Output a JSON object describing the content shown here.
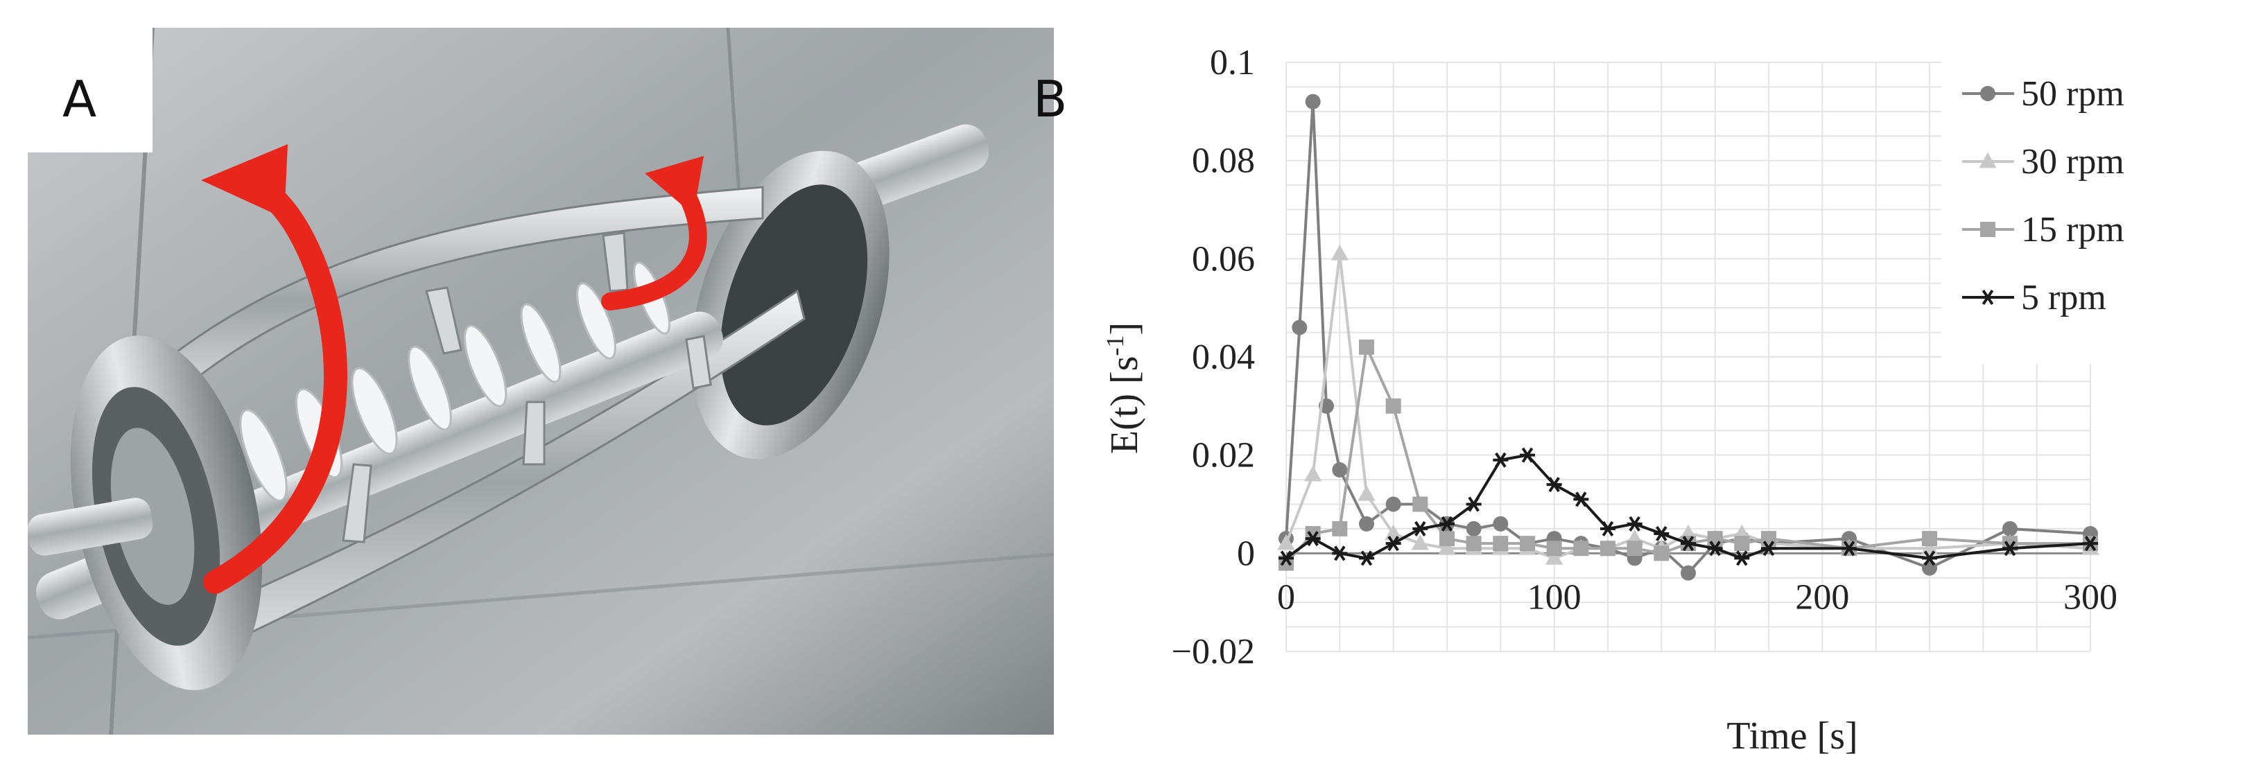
{
  "panels": {
    "a": {
      "letter": "A"
    },
    "b": {
      "letter": "B"
    }
  },
  "colors": {
    "s50": "#7f7f7f",
    "s30": "#c8c8c8",
    "s15": "#a5a5a5",
    "s5": "#1a1a1a",
    "grid": "#e4e4e4",
    "arrow": "#e8261c"
  },
  "chart_data": {
    "type": "line",
    "title": "",
    "xlabel": "Time [s]",
    "ylabel": "E(t) [s",
    "ylabel_sup": "-1",
    "ylabel_close": "]",
    "xlim": [
      0,
      300
    ],
    "ylim": [
      -0.02,
      0.1
    ],
    "x_ticks": [
      0,
      100,
      200,
      300
    ],
    "x_tick_labels": [
      "0",
      "100",
      "200",
      "300"
    ],
    "y_ticks": [
      -0.02,
      0,
      0.02,
      0.04,
      0.06,
      0.08,
      0.1
    ],
    "y_tick_labels": [
      "−0.02",
      "0",
      "0.02",
      "0.04",
      "0.06",
      "0.08",
      "0.1"
    ],
    "grid": true,
    "legend_position": "top-right",
    "series": [
      {
        "name": "50 rpm",
        "marker": "circle",
        "color_key": "s50",
        "points": [
          [
            0,
            0.003
          ],
          [
            5,
            0.046
          ],
          [
            10,
            0.092
          ],
          [
            15,
            0.03
          ],
          [
            20,
            0.017
          ],
          [
            30,
            0.006
          ],
          [
            40,
            0.01
          ],
          [
            50,
            0.01
          ],
          [
            60,
            0.006
          ],
          [
            70,
            0.005
          ],
          [
            80,
            0.006
          ],
          [
            90,
            0.002
          ],
          [
            100,
            0.003
          ],
          [
            110,
            0.002
          ],
          [
            120,
            0.001
          ],
          [
            130,
            -0.001
          ],
          [
            140,
            0.001
          ],
          [
            150,
            -0.004
          ],
          [
            160,
            0.002
          ],
          [
            170,
            0.003
          ],
          [
            180,
            0.002
          ],
          [
            210,
            0.003
          ],
          [
            240,
            -0.003
          ],
          [
            270,
            0.005
          ],
          [
            300,
            0.004
          ]
        ]
      },
      {
        "name": "30 rpm",
        "marker": "triangle",
        "color_key": "s30",
        "points": [
          [
            0,
            0.002
          ],
          [
            10,
            0.016
          ],
          [
            20,
            0.061
          ],
          [
            30,
            0.012
          ],
          [
            40,
            0.004
          ],
          [
            50,
            0.002
          ],
          [
            60,
            0.001
          ],
          [
            70,
            0.001
          ],
          [
            80,
            0.001
          ],
          [
            90,
            0.001
          ],
          [
            100,
            -0.001
          ],
          [
            110,
            0.001
          ],
          [
            120,
            0.001
          ],
          [
            130,
            0.003
          ],
          [
            140,
            0.001
          ],
          [
            150,
            0.004
          ],
          [
            160,
            0.003
          ],
          [
            170,
            0.004
          ],
          [
            180,
            0.002
          ],
          [
            210,
            0.001
          ],
          [
            240,
            0.001
          ],
          [
            270,
            0.002
          ],
          [
            300,
            0.001
          ]
        ]
      },
      {
        "name": "15 rpm",
        "marker": "square",
        "color_key": "s15",
        "points": [
          [
            0,
            -0.002
          ],
          [
            10,
            0.004
          ],
          [
            20,
            0.005
          ],
          [
            30,
            0.042
          ],
          [
            40,
            0.03
          ],
          [
            50,
            0.01
          ],
          [
            60,
            0.003
          ],
          [
            70,
            0.002
          ],
          [
            80,
            0.002
          ],
          [
            90,
            0.002
          ],
          [
            100,
            0.001
          ],
          [
            110,
            0.001
          ],
          [
            120,
            0.001
          ],
          [
            130,
            0.001
          ],
          [
            140,
            0.0
          ],
          [
            150,
            0.002
          ],
          [
            160,
            0.003
          ],
          [
            170,
            0.002
          ],
          [
            180,
            0.003
          ],
          [
            210,
            0.001
          ],
          [
            240,
            0.003
          ],
          [
            270,
            0.002
          ],
          [
            300,
            0.002
          ]
        ]
      },
      {
        "name": "5 rpm",
        "marker": "asterisk",
        "color_key": "s5",
        "points": [
          [
            0,
            -0.001
          ],
          [
            10,
            0.003
          ],
          [
            20,
            0.0
          ],
          [
            30,
            -0.001
          ],
          [
            40,
            0.002
          ],
          [
            50,
            0.005
          ],
          [
            60,
            0.006
          ],
          [
            70,
            0.01
          ],
          [
            80,
            0.019
          ],
          [
            90,
            0.02
          ],
          [
            100,
            0.014
          ],
          [
            110,
            0.011
          ],
          [
            120,
            0.005
          ],
          [
            130,
            0.006
          ],
          [
            140,
            0.004
          ],
          [
            150,
            0.002
          ],
          [
            160,
            0.001
          ],
          [
            170,
            -0.001
          ],
          [
            180,
            0.001
          ],
          [
            210,
            0.001
          ],
          [
            240,
            -0.001
          ],
          [
            270,
            0.001
          ],
          [
            300,
            0.002
          ]
        ]
      }
    ]
  }
}
